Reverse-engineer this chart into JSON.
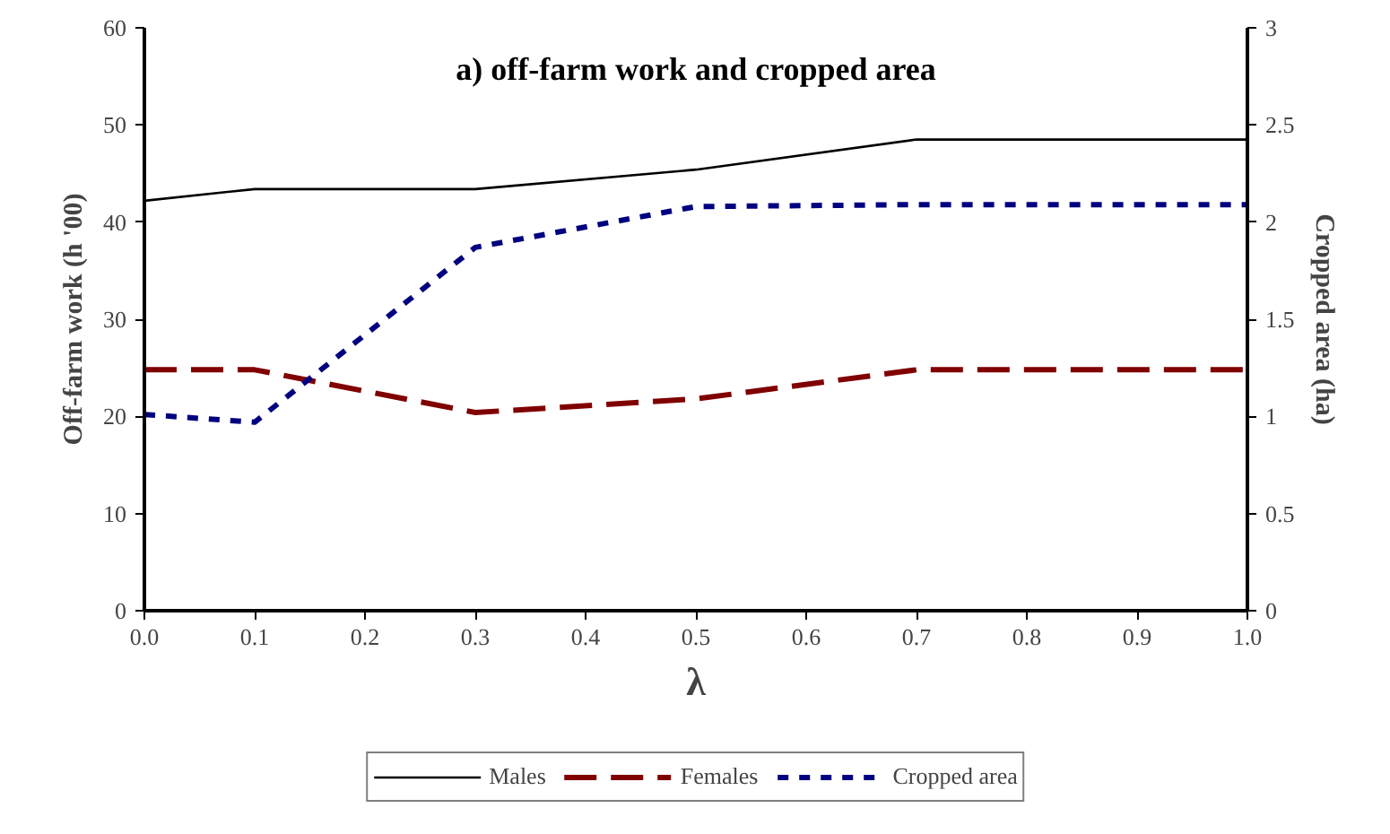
{
  "chart_data": {
    "type": "line",
    "title": "a) off-farm work and cropped area",
    "xlabel": "λ",
    "ylabel": "Off-farm work (h '00)",
    "y2label": "Cropped area (ha)",
    "x": [
      0.0,
      0.1,
      0.3,
      0.5,
      0.7,
      1.0
    ],
    "series": [
      {
        "name": "Males",
        "color": "#000000",
        "line_style": "solid",
        "values": [
          42.2,
          43.4,
          43.4,
          45.4,
          48.5,
          48.5
        ]
      },
      {
        "name": "Females",
        "color": "#800000",
        "line_style": "dashed",
        "values": [
          24.8,
          24.8,
          20.4,
          21.8,
          24.8,
          24.8
        ]
      },
      {
        "name": "Cropped area",
        "color": "#000080",
        "line_style": "dotted",
        "axis": "y2",
        "values": [
          1.01,
          0.97,
          1.87,
          2.08,
          2.09,
          2.09
        ]
      }
    ],
    "xlim": [
      0,
      1
    ],
    "xticks": [
      {
        "value": 0,
        "label": "0.0"
      },
      0.1,
      0.2,
      0.3,
      0.4,
      0.5,
      0.6,
      0.7,
      0.8,
      0.9,
      {
        "value": 1,
        "label": "1.0"
      }
    ],
    "ylim": [
      0,
      60
    ],
    "yticks": [
      0,
      10,
      20,
      30,
      40,
      50,
      60
    ],
    "y2lim": [
      0,
      3
    ],
    "y2ticks": [
      0,
      0.5,
      1,
      1.5,
      2,
      2.5,
      3
    ],
    "grid": false,
    "legend": "bottom"
  }
}
